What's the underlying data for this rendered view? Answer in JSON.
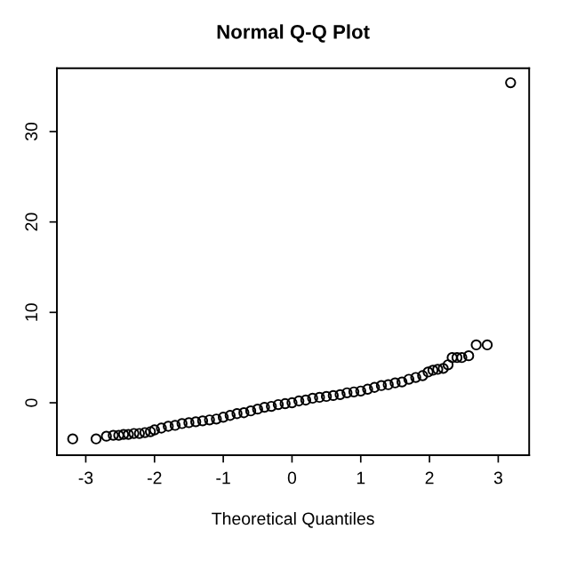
{
  "chart_data": {
    "type": "scatter",
    "title": "Normal Q-Q Plot",
    "xlabel": "Theoretical Quantiles",
    "x": [
      -3.19,
      -2.85,
      -2.7,
      -2.6,
      -2.52,
      -2.45,
      -2.38,
      -2.3,
      -2.22,
      -2.14,
      -2.06,
      -2.0,
      -1.9,
      -1.8,
      -1.7,
      -1.6,
      -1.5,
      -1.4,
      -1.3,
      -1.2,
      -1.1,
      -1.0,
      -0.9,
      -0.8,
      -0.7,
      -0.6,
      -0.5,
      -0.4,
      -0.3,
      -0.2,
      -0.1,
      0.0,
      0.1,
      0.2,
      0.3,
      0.4,
      0.5,
      0.6,
      0.7,
      0.8,
      0.9,
      1.0,
      1.1,
      1.2,
      1.3,
      1.4,
      1.5,
      1.6,
      1.7,
      1.8,
      1.9,
      1.98,
      2.05,
      2.12,
      2.2,
      2.27,
      2.33,
      2.4,
      2.47,
      2.57,
      2.68,
      2.84,
      3.18
    ],
    "values": [
      -4.0,
      -4.0,
      -3.7,
      -3.6,
      -3.6,
      -3.5,
      -3.5,
      -3.4,
      -3.4,
      -3.3,
      -3.2,
      -3.0,
      -2.8,
      -2.6,
      -2.5,
      -2.3,
      -2.2,
      -2.1,
      -2.0,
      -1.9,
      -1.8,
      -1.6,
      -1.4,
      -1.2,
      -1.1,
      -0.9,
      -0.7,
      -0.5,
      -0.4,
      -0.2,
      -0.1,
      0.0,
      0.2,
      0.3,
      0.5,
      0.6,
      0.7,
      0.8,
      0.9,
      1.1,
      1.2,
      1.3,
      1.5,
      1.7,
      1.9,
      2.0,
      2.2,
      2.3,
      2.6,
      2.8,
      3.0,
      3.4,
      3.6,
      3.7,
      3.8,
      4.2,
      5.0,
      5.0,
      5.0,
      5.2,
      6.4,
      6.4,
      35.4
    ],
    "color": "#000000",
    "marker": "circle",
    "grid": false,
    "legend": false,
    "xlim": [
      -3.42,
      3.45
    ],
    "ylim": [
      -5.8,
      37.0
    ],
    "xticks": [
      -3,
      -2,
      -1,
      0,
      1,
      2,
      3
    ],
    "yticks": [
      0,
      10,
      20,
      30
    ]
  }
}
